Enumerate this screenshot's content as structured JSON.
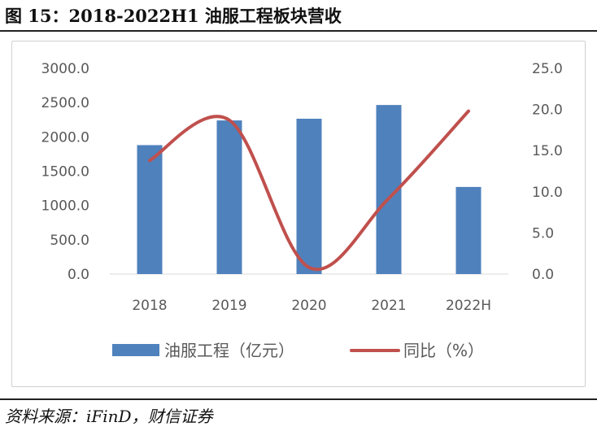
{
  "figure": {
    "title": "图 15：2018-2022H1 油服工程板块营收",
    "source": "资料来源：iFinD，财信证券"
  },
  "chart_data": {
    "type": "bar",
    "categories": [
      "2018",
      "2019",
      "2020",
      "2021",
      "2022H"
    ],
    "series": [
      {
        "name": "油服工程（亿元）",
        "type": "bar",
        "axis": "left",
        "color": "#4f81bd",
        "values": [
          1880,
          2240,
          2265,
          2465,
          1270
        ]
      },
      {
        "name": "同比（%）",
        "type": "line",
        "axis": "right",
        "color": "#c0504d",
        "values": [
          13.8,
          18.7,
          0.8,
          9.2,
          19.8
        ]
      }
    ],
    "y_left": {
      "ticks": [
        "3000.0",
        "2500.0",
        "2000.0",
        "1500.0",
        "1000.0",
        "500.0",
        "0.0"
      ],
      "ylim": [
        0,
        3000
      ]
    },
    "y_right": {
      "ticks": [
        "25.0",
        "20.0",
        "15.0",
        "10.0",
        "5.0",
        "0.0"
      ],
      "ylim": [
        0,
        25
      ]
    },
    "grid": false,
    "legend_position": "bottom"
  }
}
